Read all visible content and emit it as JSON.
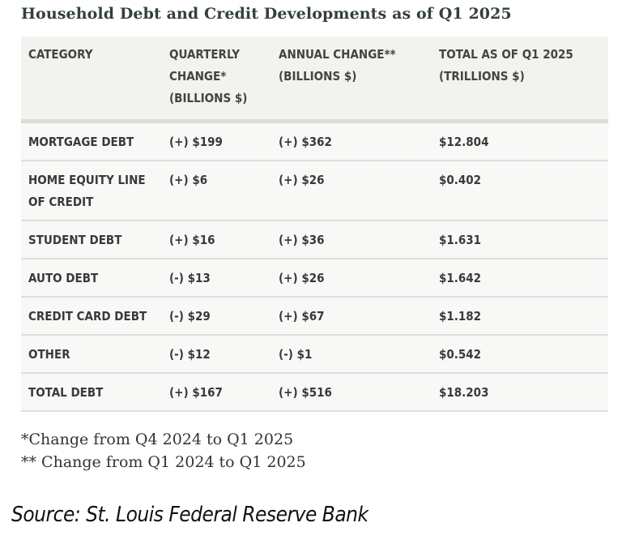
{
  "title": "Household Debt and Credit Developments as of Q1 2025",
  "columns": [
    "CATEGORY",
    "QUARTERLY CHANGE* (BILLIONS $)",
    "ANNUAL CHANGE** (BILLIONS $)",
    "TOTAL AS OF Q1 2025 (TRILLIONS $)"
  ],
  "rows": [
    {
      "category": "MORTGAGE DEBT",
      "quarterly": "(+) $199",
      "annual": "(+) $362",
      "total": "$12.804"
    },
    {
      "category": "HOME EQUITY LINE OF CREDIT",
      "quarterly": "(+) $6",
      "annual": "(+) $26",
      "total": "$0.402"
    },
    {
      "category": "STUDENT DEBT",
      "quarterly": "(+) $16",
      "annual": "(+) $36",
      "total": "$1.631"
    },
    {
      "category": "AUTO DEBT",
      "quarterly": "(-) $13",
      "annual": "(+) $26",
      "total": "$1.642"
    },
    {
      "category": "CREDIT CARD DEBT",
      "quarterly": "(-) $29",
      "annual": "(+) $67",
      "total": "$1.182"
    },
    {
      "category": "OTHER",
      "quarterly": "(-) $12",
      "annual": "(-) $1",
      "total": "$0.542"
    },
    {
      "category": "TOTAL DEBT",
      "quarterly": "(+) $167",
      "annual": "(+) $516",
      "total": "$18.203"
    }
  ],
  "notes": [
    "*Change from Q4 2024 to Q1 2025",
    "** Change from Q1 2024 to Q1 2025"
  ],
  "source": "Source: St. Louis Federal Reserve Bank",
  "chart_data": {
    "type": "table",
    "title": "Household Debt and Credit Developments as of Q1 2025",
    "columns": [
      "CATEGORY",
      "QUARTERLY CHANGE* (BILLIONS $)",
      "ANNUAL CHANGE** (BILLIONS $)",
      "TOTAL AS OF Q1 2025 (TRILLIONS $)"
    ],
    "categories": [
      "MORTGAGE DEBT",
      "HOME EQUITY LINE OF CREDIT",
      "STUDENT DEBT",
      "AUTO DEBT",
      "CREDIT CARD DEBT",
      "OTHER",
      "TOTAL DEBT"
    ],
    "series": [
      {
        "name": "QUARTERLY CHANGE* (BILLIONS $)",
        "values": [
          199,
          6,
          16,
          -13,
          -29,
          -12,
          167
        ]
      },
      {
        "name": "ANNUAL CHANGE** (BILLIONS $)",
        "values": [
          362,
          26,
          36,
          26,
          67,
          -1,
          516
        ]
      },
      {
        "name": "TOTAL AS OF Q1 2025 (TRILLIONS $)",
        "values": [
          12.804,
          0.402,
          1.631,
          1.642,
          1.182,
          0.542,
          18.203
        ]
      }
    ]
  }
}
